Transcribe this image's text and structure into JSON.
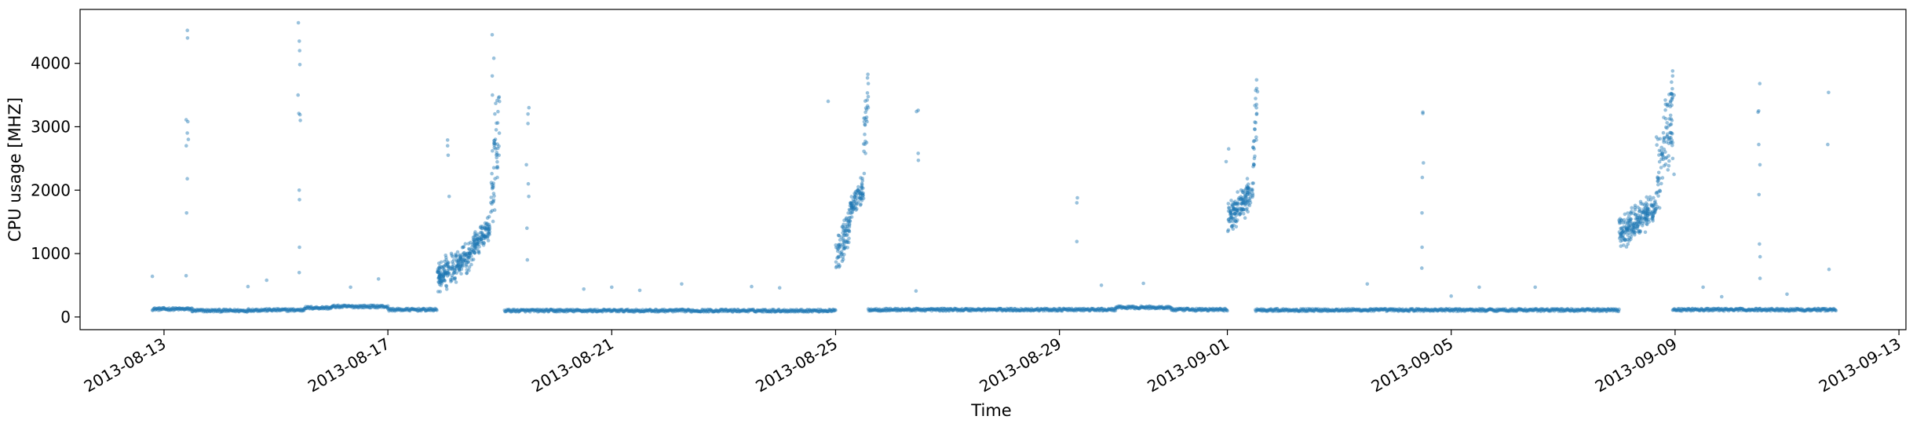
{
  "chart_data": {
    "type": "scatter",
    "title": "",
    "xlabel": "Time",
    "ylabel": "CPU usage [MHZ]",
    "xlim": [
      "2013-08-11T12:00",
      "2013-09-13T03:00"
    ],
    "ylim": [
      -200,
      4850
    ],
    "x_ticks": [
      "2013-08-13",
      "2013-08-17",
      "2013-08-21",
      "2013-08-25",
      "2013-08-29",
      "2013-09-01",
      "2013-09-05",
      "2013-09-09",
      "2013-09-13"
    ],
    "y_ticks": [
      0,
      1000,
      2000,
      3000,
      4000
    ],
    "grid": false,
    "legend": "none",
    "marker_color": "#1f77b4",
    "marker_alpha": 0.45,
    "series": [
      {
        "baseline_segments": [
          {
            "start": "2013-08-12T19:00",
            "end": "2013-08-13T12:00",
            "value": 125
          },
          {
            "start": "2013-08-13T12:00",
            "end": "2013-08-14T12:00",
            "value": 100
          },
          {
            "start": "2013-08-14T12:00",
            "end": "2013-08-15T12:00",
            "value": 110
          },
          {
            "start": "2013-08-15T12:00",
            "end": "2013-08-16T00:00",
            "value": 145
          },
          {
            "start": "2013-08-16T00:00",
            "end": "2013-08-17T00:00",
            "value": 165
          },
          {
            "start": "2013-08-17T00:00",
            "end": "2013-08-17T21:00",
            "value": 115
          },
          {
            "start": "2013-08-19T02:00",
            "end": "2013-08-20T00:00",
            "value": 100
          },
          {
            "start": "2013-08-20T00:00",
            "end": "2013-08-25T00:00",
            "value": 100
          },
          {
            "start": "2013-08-25T14:00",
            "end": "2013-08-30T00:00",
            "value": 115
          },
          {
            "start": "2013-08-30T00:00",
            "end": "2013-08-31T00:00",
            "value": 150
          },
          {
            "start": "2013-08-31T00:00",
            "end": "2013-09-01T00:00",
            "value": 115
          },
          {
            "start": "2013-09-01T12:00",
            "end": "2013-09-08T00:00",
            "value": 110
          },
          {
            "start": "2013-09-08T23:00",
            "end": "2013-09-11T21:00",
            "value": 115
          }
        ],
        "bursts": [
          {
            "start": "2013-08-17T21:00",
            "end": "2013-08-18T12:00",
            "min": 400,
            "max": 1200
          },
          {
            "start": "2013-08-18T12:00",
            "end": "2013-08-18T20:00",
            "min": 900,
            "max": 1600
          },
          {
            "start": "2013-08-18T20:00",
            "end": "2013-08-19T00:00",
            "min": 1100,
            "max": 3800
          },
          {
            "start": "2013-08-25T00:00",
            "end": "2013-08-25T06:00",
            "min": 700,
            "max": 1700
          },
          {
            "start": "2013-08-25T06:00",
            "end": "2013-08-25T12:00",
            "min": 1500,
            "max": 2200
          },
          {
            "start": "2013-08-25T12:00",
            "end": "2013-08-25T14:00",
            "min": 2200,
            "max": 4000
          },
          {
            "start": "2013-09-01T00:00",
            "end": "2013-09-01T11:00",
            "min": 1300,
            "max": 2200
          },
          {
            "start": "2013-09-01T11:00",
            "end": "2013-09-01T13:00",
            "min": 2000,
            "max": 4050
          },
          {
            "start": "2013-09-08T00:00",
            "end": "2013-09-08T16:00",
            "min": 1100,
            "max": 1950
          },
          {
            "start": "2013-09-08T16:00",
            "end": "2013-09-08T23:00",
            "min": 1600,
            "max": 3800
          }
        ],
        "spikes": [
          {
            "x": "2013-08-13T10:00",
            "values": [
              4520,
              4400,
              3110,
              3080,
              2900,
              2800,
              2700,
              2180,
              1640,
              650
            ]
          },
          {
            "x": "2013-08-15T10:00",
            "values": [
              4640,
              4350,
              4200,
              3980,
              3500,
              3210,
              3190,
              3100,
              2000,
              1850,
              1100,
              700
            ]
          },
          {
            "x": "2013-08-18T02:00",
            "values": [
              2790,
              2700,
              2550,
              1900
            ]
          },
          {
            "x": "2013-08-18T21:00",
            "values": [
              4450,
              4080,
              3800,
              3500
            ]
          },
          {
            "x": "2013-08-19T12:00",
            "values": [
              3300,
              3200,
              3050,
              2400,
              2100,
              1900,
              1400,
              900
            ]
          },
          {
            "x": "2013-08-24T21:00",
            "values": [
              3400
            ]
          },
          {
            "x": "2013-08-26T11:00",
            "values": [
              3260,
              3240,
              2580,
              2470,
              410
            ]
          },
          {
            "x": "2013-08-29T08:00",
            "values": [
              1880,
              1800,
              1190
            ]
          },
          {
            "x": "2013-09-01T00:00",
            "values": [
              2650,
              2450
            ]
          },
          {
            "x": "2013-09-04T12:00",
            "values": [
              3230,
              3210,
              2430,
              2200,
              1640,
              1100,
              770
            ]
          },
          {
            "x": "2013-09-08T23:00",
            "values": [
              3880,
              3600,
              3500,
              3100,
              2900,
              2500,
              2250
            ]
          },
          {
            "x": "2013-09-10T12:00",
            "values": [
              3680,
              3250,
              3230,
              2720,
              2400,
              1930,
              1150,
              950,
              610
            ]
          },
          {
            "x": "2013-09-11T18:00",
            "values": [
              3540,
              2720,
              750
            ]
          }
        ],
        "scattered_outliers": [
          {
            "x": "2013-08-12T19:00",
            "y": 640
          },
          {
            "x": "2013-08-14T12:00",
            "y": 480
          },
          {
            "x": "2013-08-14T20:00",
            "y": 580
          },
          {
            "x": "2013-08-16T08:00",
            "y": 470
          },
          {
            "x": "2013-08-16T20:00",
            "y": 600
          },
          {
            "x": "2013-08-20T12:00",
            "y": 440
          },
          {
            "x": "2013-08-21T00:00",
            "y": 470
          },
          {
            "x": "2013-08-21T12:00",
            "y": 420
          },
          {
            "x": "2013-08-22T06:00",
            "y": 520
          },
          {
            "x": "2013-08-23T12:00",
            "y": 480
          },
          {
            "x": "2013-08-24T00:00",
            "y": 460
          },
          {
            "x": "2013-08-29T18:00",
            "y": 500
          },
          {
            "x": "2013-08-30T12:00",
            "y": 530
          },
          {
            "x": "2013-09-03T12:00",
            "y": 520
          },
          {
            "x": "2013-09-05T00:00",
            "y": 330
          },
          {
            "x": "2013-09-05T12:00",
            "y": 470
          },
          {
            "x": "2013-09-06T12:00",
            "y": 470
          },
          {
            "x": "2013-09-09T12:00",
            "y": 470
          },
          {
            "x": "2013-09-09T20:00",
            "y": 320
          },
          {
            "x": "2013-09-11T00:00",
            "y": 360
          }
        ]
      }
    ]
  }
}
